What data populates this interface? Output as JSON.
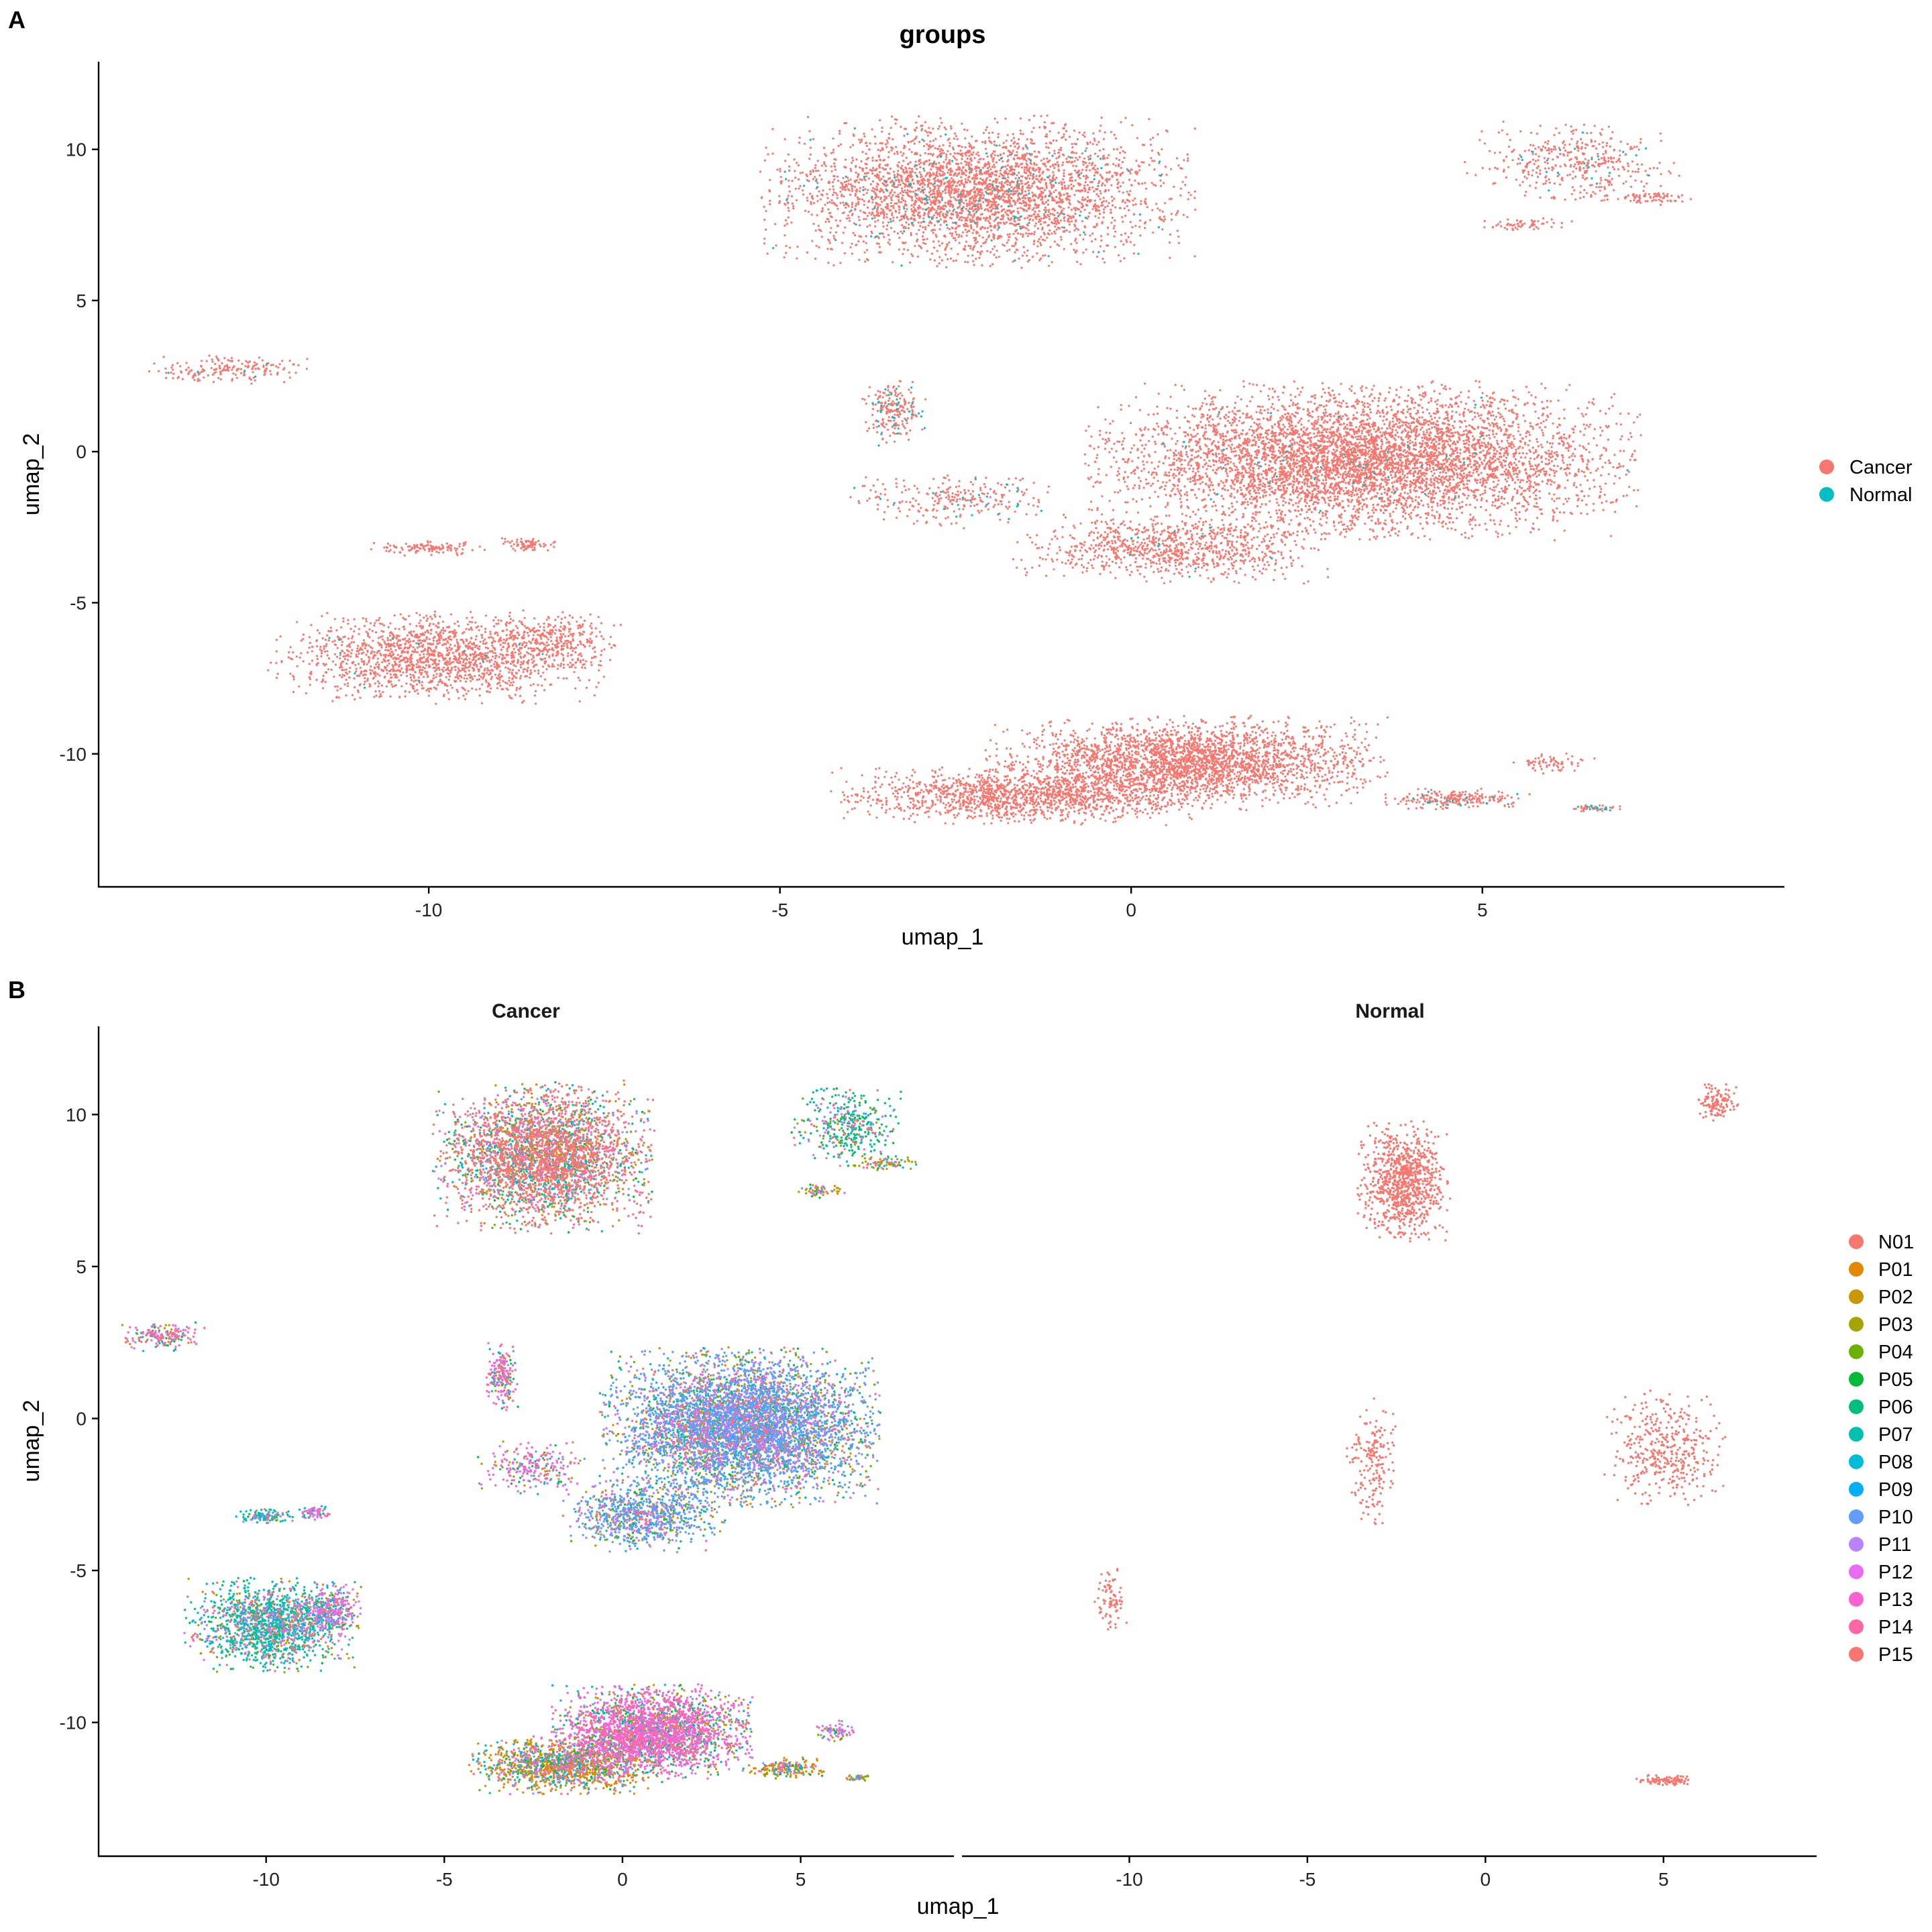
{
  "panel_a": {
    "letter": "A",
    "title": "groups",
    "xlabel": "umap_1",
    "ylabel": "umap_2",
    "legend": [
      "Cancer",
      "Normal"
    ],
    "colors": {
      "Cancer": "#F8766D",
      "Normal": "#00BFC4"
    }
  },
  "panel_b": {
    "letter": "B",
    "facets": [
      "Cancer",
      "Normal"
    ],
    "xlabel": "umap_1",
    "ylabel": "umap_2",
    "legend": [
      "N01",
      "P01",
      "P02",
      "P03",
      "P04",
      "P05",
      "P06",
      "P07",
      "P08",
      "P09",
      "P10",
      "P11",
      "P12",
      "P13",
      "P14",
      "P15"
    ],
    "colors": [
      "#F8766D",
      "#E58700",
      "#C99800",
      "#A3A500",
      "#6BB100",
      "#00BA38",
      "#00BF7D",
      "#00C0AF",
      "#00BCD8",
      "#00B0F6",
      "#619CFF",
      "#B983FF",
      "#E76BF3",
      "#FD61D1",
      "#FF67A4",
      "#F8766D"
    ]
  },
  "chart_data": [
    {
      "type": "scatter",
      "title": "groups",
      "xlabel": "umap_1",
      "ylabel": "umap_2",
      "xlim": [
        -14.7,
        9.3
      ],
      "ylim": [
        -14.4,
        12.9
      ],
      "xticks": [
        -10,
        -5,
        0,
        5
      ],
      "yticks": [
        -10,
        -5,
        0,
        5,
        10
      ],
      "grid": false,
      "legend_position": "right",
      "series": [
        {
          "name": "Cancer",
          "color": "#F8766D"
        },
        {
          "name": "Normal",
          "color": "#00BFC4"
        }
      ],
      "clusters": [
        {
          "cx": -2.2,
          "cy": 8.6,
          "rx": 2.6,
          "ry": 2.1,
          "n": 3500,
          "normal_frac": 0.04
        },
        {
          "cx": 6.3,
          "cy": 9.6,
          "rx": 1.3,
          "ry": 1.1,
          "n": 400,
          "normal_frac": 0.05
        },
        {
          "cx": 7.3,
          "cy": 8.4,
          "rx": 0.9,
          "ry": 0.2,
          "n": 80,
          "normal_frac": 0.0
        },
        {
          "cx": 5.6,
          "cy": 7.5,
          "rx": 0.6,
          "ry": 0.2,
          "n": 60,
          "normal_frac": 0.0
        },
        {
          "cx": -12.9,
          "cy": 2.7,
          "rx": 1.0,
          "ry": 0.4,
          "n": 180,
          "normal_frac": 0.03
        },
        {
          "cx": -3.4,
          "cy": 1.4,
          "rx": 0.4,
          "ry": 1.0,
          "n": 220,
          "normal_frac": 0.12
        },
        {
          "cx": -2.5,
          "cy": -1.6,
          "rx": 1.3,
          "ry": 0.8,
          "n": 260,
          "normal_frac": 0.08
        },
        {
          "cx": 0.6,
          "cy": -3.2,
          "rx": 1.9,
          "ry": 1.0,
          "n": 900,
          "normal_frac": 0.01
        },
        {
          "cx": 3.3,
          "cy": -0.3,
          "rx": 3.3,
          "ry": 2.2,
          "n": 5600,
          "normal_frac": 0.01
        },
        {
          "cx": -9.9,
          "cy": -6.8,
          "rx": 2.0,
          "ry": 1.3,
          "n": 1600,
          "normal_frac": 0.01
        },
        {
          "cx": -8.2,
          "cy": -6.3,
          "rx": 0.8,
          "ry": 0.8,
          "n": 300,
          "normal_frac": 0.0
        },
        {
          "cx": -10.0,
          "cy": -3.2,
          "rx": 0.7,
          "ry": 0.2,
          "n": 120,
          "normal_frac": 0.0
        },
        {
          "cx": -8.6,
          "cy": -3.1,
          "rx": 0.4,
          "ry": 0.2,
          "n": 70,
          "normal_frac": 0.0
        },
        {
          "cx": 0.8,
          "cy": -10.3,
          "rx": 2.4,
          "ry": 1.3,
          "n": 2800,
          "normal_frac": 0.0
        },
        {
          "cx": -1.6,
          "cy": -11.4,
          "rx": 2.3,
          "ry": 0.8,
          "n": 1400,
          "normal_frac": 0.0
        },
        {
          "cx": 4.6,
          "cy": -11.5,
          "rx": 0.9,
          "ry": 0.3,
          "n": 220,
          "normal_frac": 0.1
        },
        {
          "cx": 6.0,
          "cy": -10.3,
          "rx": 0.5,
          "ry": 0.3,
          "n": 70,
          "normal_frac": 0.0
        },
        {
          "cx": 6.6,
          "cy": -11.8,
          "rx": 0.3,
          "ry": 0.1,
          "n": 50,
          "normal_frac": 0.3
        }
      ]
    },
    {
      "type": "scatter",
      "facet": "Cancer",
      "xlabel": "umap_1",
      "ylabel": "umap_2",
      "xlim": [
        -14.7,
        9.3
      ],
      "ylim": [
        -14.4,
        12.9
      ],
      "xticks": [
        -10,
        -5,
        0,
        5
      ],
      "yticks": [
        -10,
        -5,
        0,
        5,
        10
      ],
      "series_names": [
        "P01",
        "P02",
        "P03",
        "P04",
        "P05",
        "P06",
        "P07",
        "P08",
        "P09",
        "P10",
        "P11",
        "P12",
        "P13",
        "P14",
        "P15"
      ]
    },
    {
      "type": "scatter",
      "facet": "Normal",
      "xlabel": "umap_1",
      "ylabel": "umap_2",
      "xlim": [
        -14.7,
        9.3
      ],
      "ylim": [
        -14.4,
        12.9
      ],
      "xticks": [
        -10,
        -5,
        0,
        5
      ],
      "yticks": [
        -10,
        -5,
        0,
        5,
        10
      ],
      "series_names": [
        "N01"
      ],
      "clusters": [
        {
          "cx": -2.3,
          "cy": 7.8,
          "rx": 1.1,
          "ry": 1.7,
          "n": 900
        },
        {
          "cx": 6.5,
          "cy": 10.4,
          "rx": 0.5,
          "ry": 0.5,
          "n": 120
        },
        {
          "cx": -3.2,
          "cy": -1.5,
          "rx": 0.6,
          "ry": 1.8,
          "n": 180
        },
        {
          "cx": 5.0,
          "cy": -1.0,
          "rx": 1.5,
          "ry": 1.6,
          "n": 400
        },
        {
          "cx": -10.5,
          "cy": -6.0,
          "rx": 0.4,
          "ry": 0.9,
          "n": 80
        },
        {
          "cx": 5.0,
          "cy": -11.9,
          "rx": 0.8,
          "ry": 0.15,
          "n": 100
        }
      ]
    }
  ]
}
